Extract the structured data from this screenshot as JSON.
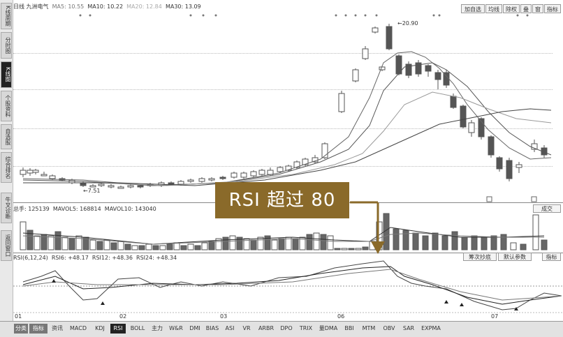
{
  "sidebar": {
    "items": [
      {
        "label": "K线周期",
        "active": false
      },
      {
        "label": "分时图",
        "active": false
      },
      {
        "label": "K线图",
        "active": true
      },
      {
        "label": "个股资料",
        "active": false
      },
      {
        "label": "自选股",
        "active": false
      },
      {
        "label": "综合排名",
        "active": false
      },
      {
        "label": "牛叉诊断",
        "active": false
      },
      {
        "label": "返回窗口",
        "active": false
      }
    ]
  },
  "price_panel": {
    "info": {
      "name": "日线 九洲电气",
      "ma5": "MA5: 10.55",
      "ma10": "MA10: 10.22",
      "ma20": "MA20: 12.84",
      "ma30": "MA30: 13.09"
    },
    "toolbar": [
      "加自选",
      "均线",
      "除权",
      "叠",
      "窗",
      "指标"
    ],
    "high_label": "20.90",
    "low_label": "7.51"
  },
  "volume_panel": {
    "info": {
      "vol": "总手: 125139",
      "mavol5": "MAVOL5: 168814",
      "mavol10": "MAVOL10: 143040"
    },
    "button": "成交"
  },
  "rsi_panel": {
    "info": {
      "params": "RSI(6,12,24)",
      "rsi6": "RSI6: +48.17",
      "rsi12": "RSI12: +48.36",
      "rsi24": "RSI24: +48.34"
    },
    "buttons": [
      "筹次抄底",
      "默认参数",
      "指标"
    ]
  },
  "callout": "RSI 超过 80",
  "dates": [
    "01",
    "02",
    "03",
    "06",
    "07"
  ],
  "tabs": [
    "分类",
    "指标",
    "资讯",
    "MACD",
    "KDJ",
    "RSI",
    "BOLL",
    "主力",
    "W&R",
    "DMI",
    "BIAS",
    "ASI",
    "VR",
    "ARBR",
    "DPO",
    "TRIX",
    "量DMA",
    "BBI",
    "MTM",
    "OBV",
    "SAR",
    "EXPMA"
  ],
  "active_tab": "RSI",
  "colors": {
    "up": "#555555",
    "down": "#555555",
    "line": "#333333",
    "callout": "#8a6a2a"
  }
}
